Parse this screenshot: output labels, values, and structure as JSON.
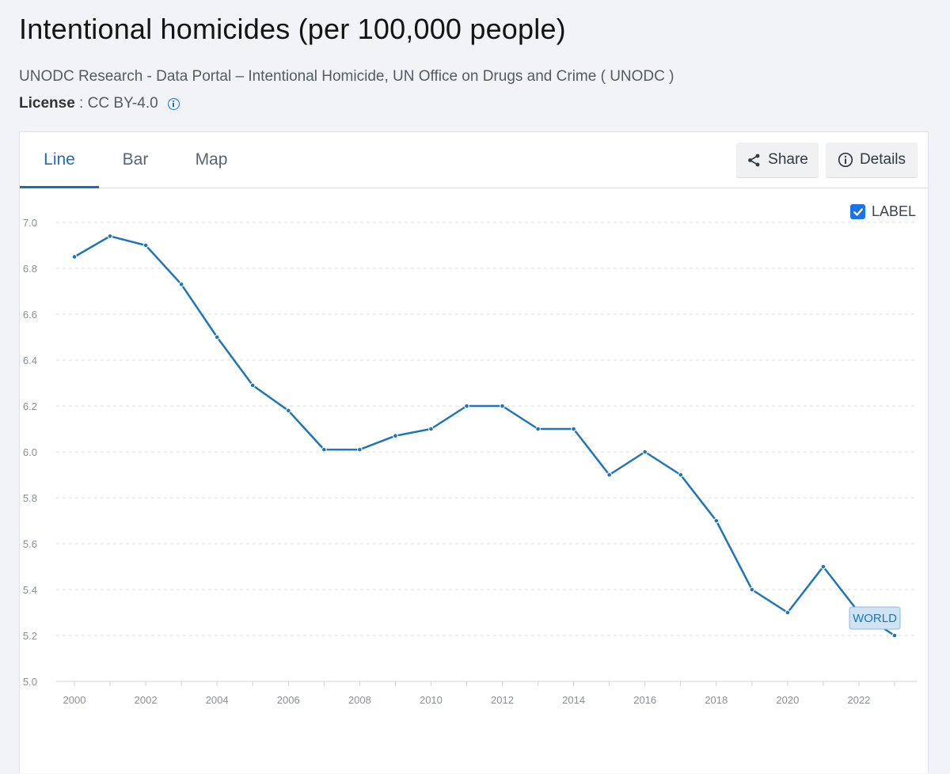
{
  "header": {
    "title": "Intentional homicides (per 100,000 people)",
    "source": "UNODC Research - Data Portal – Intentional Homicide, UN Office on Drugs and Crime ( UNODC )",
    "license_label": "License",
    "license_value": " : CC BY-4.0"
  },
  "tabs": [
    {
      "label": "Line",
      "active": true
    },
    {
      "label": "Bar",
      "active": false
    },
    {
      "label": "Map",
      "active": false
    }
  ],
  "actions": {
    "share_label": "Share",
    "details_label": "Details"
  },
  "label_toggle": {
    "text": "LABEL",
    "checked": true
  },
  "colors": {
    "series": "#1f75b5",
    "accent": "#1a6dbb",
    "grid": "#dcdcdc",
    "tick_text": "#8a8f96"
  },
  "chart_data": {
    "type": "line",
    "title": "Intentional homicides (per 100,000 people)",
    "xlabel": "",
    "ylabel": "",
    "ylim": [
      5.0,
      7.0
    ],
    "xlim": [
      2000,
      2023
    ],
    "y_ticks": [
      "5.0",
      "5.2",
      "5.4",
      "5.6",
      "5.8",
      "6.0",
      "6.2",
      "6.4",
      "6.6",
      "6.8",
      "7.0"
    ],
    "x_ticks": [
      "2000",
      "2002",
      "2004",
      "2006",
      "2008",
      "2010",
      "2012",
      "2014",
      "2016",
      "2018",
      "2020",
      "2022"
    ],
    "grid": true,
    "series": [
      {
        "name": "WORLD",
        "x": [
          2000,
          2001,
          2002,
          2003,
          2004,
          2005,
          2006,
          2007,
          2008,
          2009,
          2010,
          2011,
          2012,
          2013,
          2014,
          2015,
          2016,
          2017,
          2018,
          2019,
          2020,
          2021,
          2022,
          2023
        ],
        "values": [
          6.85,
          6.94,
          6.9,
          6.73,
          6.5,
          6.29,
          6.18,
          6.01,
          6.01,
          6.07,
          6.1,
          6.2,
          6.2,
          6.1,
          6.1,
          5.9,
          6.0,
          5.9,
          5.7,
          5.4,
          5.3,
          5.5,
          5.3,
          5.2
        ]
      }
    ],
    "end_label": "WORLD"
  }
}
